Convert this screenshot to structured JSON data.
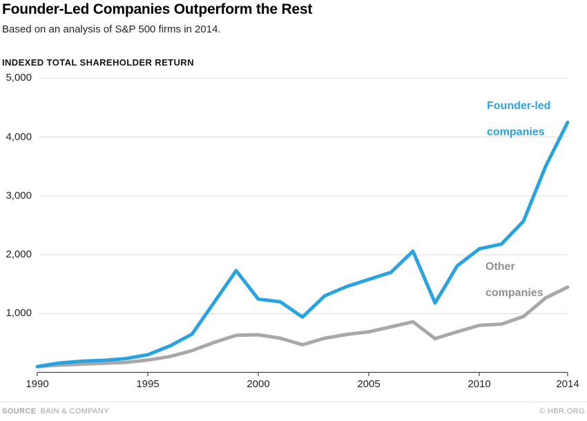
{
  "header": {
    "title": "Founder-Led Companies Outperform the Rest",
    "subtitle": "Based on an analysis of S&P 500 firms in 2014."
  },
  "chart_data": {
    "type": "line",
    "title": "Founder-Led Companies Outperform the Rest",
    "subtitle": "Based on an analysis of S&P 500 firms in 2014.",
    "ylabel": "INDEXED TOTAL SHAREHOLDER RETURN",
    "xlabel": "",
    "grid": "horizontal",
    "xlim": [
      1990,
      2014
    ],
    "ylim": [
      0,
      5000
    ],
    "x": [
      1990,
      1991,
      1992,
      1993,
      1994,
      1995,
      1996,
      1997,
      1998,
      1999,
      2000,
      2001,
      2002,
      2003,
      2004,
      2005,
      2006,
      2007,
      2008,
      2009,
      2010,
      2011,
      2012,
      2013,
      2014
    ],
    "series": [
      {
        "name": "Founder-led companies",
        "color": "#29a3e0",
        "values": [
          100,
          160,
          190,
          205,
          235,
          300,
          450,
          650,
          1190,
          1730,
          1245,
          1200,
          940,
          1300,
          1460,
          1580,
          1700,
          2060,
          1180,
          1810,
          2100,
          2180,
          2570,
          3500,
          4250
        ]
      },
      {
        "name": "Other companies",
        "color": "#a8a8a8",
        "values": [
          100,
          125,
          140,
          155,
          170,
          210,
          270,
          370,
          510,
          630,
          640,
          580,
          470,
          580,
          645,
          690,
          775,
          860,
          575,
          690,
          800,
          820,
          950,
          1265,
          1450
        ]
      }
    ],
    "xticks": [
      {
        "value": 1990,
        "label": "1990"
      },
      {
        "value": 1995,
        "label": "1995"
      },
      {
        "value": 2000,
        "label": "2000"
      },
      {
        "value": 2005,
        "label": "2005"
      },
      {
        "value": 2010,
        "label": "2010"
      },
      {
        "value": 2014,
        "label": "2014"
      }
    ],
    "yticks": [
      {
        "value": 5000,
        "label": "5,000"
      },
      {
        "value": 4000,
        "label": "4,000"
      },
      {
        "value": 3000,
        "label": "3,000"
      },
      {
        "value": 2000,
        "label": "2,000"
      },
      {
        "value": 1000,
        "label": "1,000"
      }
    ],
    "annotations": [
      {
        "series": "Founder-led companies",
        "line1": "Founder-led",
        "line2": "companies"
      },
      {
        "series": "Other companies",
        "line1": "Other",
        "line2": "companies"
      }
    ],
    "legend_position": "inline-labels",
    "colors": {
      "gridline": "#dcdcdc",
      "axis": "#454545",
      "founder_led": "#29a3e0",
      "other": "#a8a8a8"
    }
  },
  "footer": {
    "source_label": "SOURCE",
    "source_value": "BAIN & COMPANY",
    "credit": "© HBR.ORG"
  }
}
